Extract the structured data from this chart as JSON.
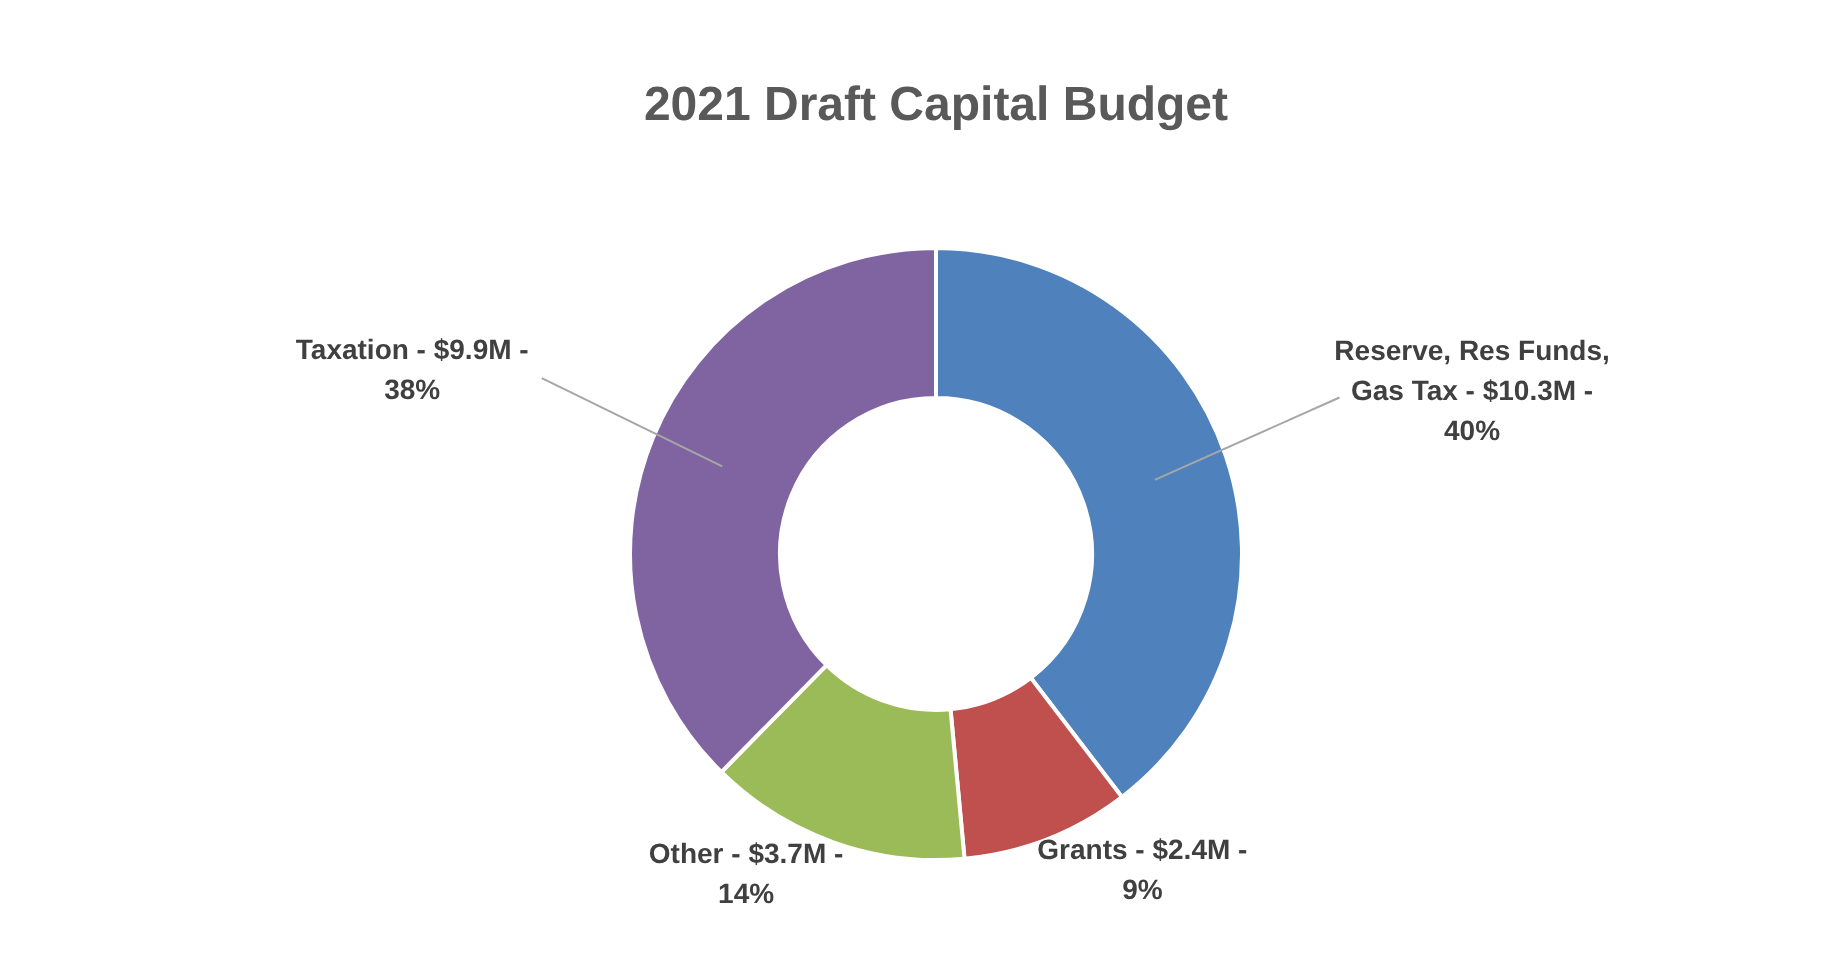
{
  "chart_data": {
    "type": "donut",
    "title": "2021 Draft Capital Budget",
    "categories": [
      "Reserve, Res Funds, Gas Tax - $10.3M - 40%",
      "Grants - $2.4M - 9%",
      "Other - $3.7M - 14%",
      "Taxation - $9.9M - 38%"
    ],
    "values": [
      40,
      9,
      14,
      38
    ],
    "colors": [
      "#4f81bd",
      "#c0504d",
      "#9bbb59",
      "#8064a2"
    ]
  }
}
